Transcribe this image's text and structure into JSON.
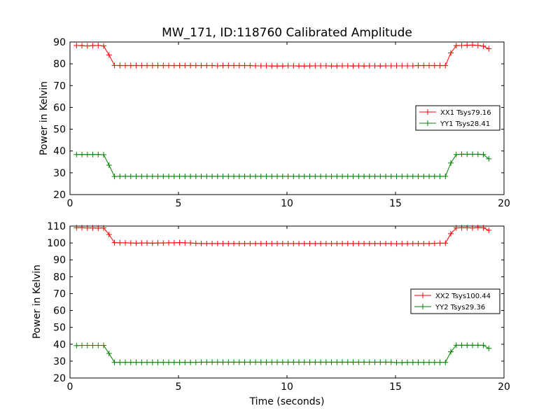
{
  "figure": {
    "title": "MW_171, ID:118760 Calibrated Amplitude",
    "xlabel": "Time (seconds)"
  },
  "colors": {
    "xx": "#ff0000",
    "yy": "#008000"
  },
  "chart_data": [
    {
      "type": "line",
      "ylabel": "Power in Kelvin",
      "xlim": [
        0,
        20
      ],
      "ylim": [
        20,
        90
      ],
      "xticks": [
        0,
        5,
        10,
        15,
        20
      ],
      "yticks": [
        20,
        30,
        40,
        50,
        60,
        70,
        80,
        90
      ],
      "legend_position": "right-middle",
      "series": [
        {
          "name": "XX1 Tsys79.16",
          "color": "#ff0000",
          "x": [
            0.3,
            0.55,
            0.8,
            1.05,
            1.3,
            1.55,
            1.8,
            2.05,
            2.3,
            2.55,
            2.8,
            3.05,
            3.3,
            3.55,
            3.8,
            4.05,
            4.3,
            4.55,
            4.8,
            5.05,
            5.3,
            5.55,
            5.8,
            6.05,
            6.3,
            6.55,
            6.8,
            7.05,
            7.3,
            7.55,
            7.8,
            8.05,
            8.3,
            8.55,
            8.8,
            9.05,
            9.3,
            9.55,
            9.8,
            10.05,
            10.3,
            10.55,
            10.8,
            11.05,
            11.3,
            11.55,
            11.8,
            12.05,
            12.3,
            12.55,
            12.8,
            13.05,
            13.3,
            13.55,
            13.8,
            14.05,
            14.3,
            14.55,
            14.8,
            15.05,
            15.3,
            15.55,
            15.8,
            16.05,
            16.3,
            16.55,
            16.8,
            17.05,
            17.3,
            17.55,
            17.8,
            18.05,
            18.3,
            18.55,
            18.8,
            19.05,
            19.3
          ],
          "y": [
            88.4,
            88.3,
            88.2,
            88.3,
            88.4,
            88.2,
            84.0,
            79.3,
            79.2,
            79.2,
            79.2,
            79.2,
            79.2,
            79.2,
            79.2,
            79.2,
            79.2,
            79.2,
            79.2,
            79.2,
            79.2,
            79.2,
            79.2,
            79.2,
            79.2,
            79.2,
            79.1,
            79.2,
            79.2,
            79.2,
            79.2,
            79.2,
            79.2,
            79.1,
            79.1,
            79.1,
            79.0,
            79.0,
            79.0,
            79.1,
            79.1,
            79.0,
            79.0,
            79.0,
            79.1,
            79.1,
            79.1,
            79.0,
            79.0,
            79.1,
            79.1,
            79.0,
            79.1,
            79.0,
            79.1,
            79.1,
            79.0,
            79.1,
            79.1,
            79.1,
            79.1,
            79.1,
            79.1,
            79.2,
            79.2,
            79.2,
            79.2,
            79.2,
            79.2,
            85.0,
            88.3,
            88.4,
            88.5,
            88.6,
            88.4,
            88.1,
            86.9
          ]
        },
        {
          "name": "YY1 Tsys28.41",
          "color": "#008000",
          "x": [
            0.3,
            0.55,
            0.8,
            1.05,
            1.3,
            1.55,
            1.8,
            2.05,
            2.3,
            2.55,
            2.8,
            3.05,
            3.3,
            3.55,
            3.8,
            4.05,
            4.3,
            4.55,
            4.8,
            5.05,
            5.3,
            5.55,
            5.8,
            6.05,
            6.3,
            6.55,
            6.8,
            7.05,
            7.3,
            7.55,
            7.8,
            8.05,
            8.3,
            8.55,
            8.8,
            9.05,
            9.3,
            9.55,
            9.8,
            10.05,
            10.3,
            10.55,
            10.8,
            11.05,
            11.3,
            11.55,
            11.8,
            12.05,
            12.3,
            12.55,
            12.8,
            13.05,
            13.3,
            13.55,
            13.8,
            14.05,
            14.3,
            14.55,
            14.8,
            15.05,
            15.3,
            15.55,
            15.8,
            16.05,
            16.3,
            16.55,
            16.8,
            17.05,
            17.3,
            17.55,
            17.8,
            18.05,
            18.3,
            18.55,
            18.8,
            19.05,
            19.3
          ],
          "y": [
            38.4,
            38.4,
            38.4,
            38.4,
            38.4,
            38.3,
            33.5,
            28.3,
            28.4,
            28.4,
            28.4,
            28.4,
            28.4,
            28.4,
            28.4,
            28.4,
            28.4,
            28.4,
            28.4,
            28.4,
            28.4,
            28.4,
            28.4,
            28.4,
            28.4,
            28.4,
            28.4,
            28.4,
            28.4,
            28.4,
            28.4,
            28.4,
            28.4,
            28.4,
            28.4,
            28.4,
            28.4,
            28.4,
            28.4,
            28.4,
            28.4,
            28.4,
            28.4,
            28.4,
            28.4,
            28.4,
            28.4,
            28.4,
            28.4,
            28.4,
            28.4,
            28.4,
            28.4,
            28.4,
            28.4,
            28.4,
            28.4,
            28.4,
            28.4,
            28.4,
            28.4,
            28.4,
            28.4,
            28.4,
            28.4,
            28.4,
            28.4,
            28.4,
            28.4,
            34.5,
            38.4,
            38.5,
            38.5,
            38.5,
            38.5,
            38.4,
            36.4
          ]
        }
      ]
    },
    {
      "type": "line",
      "ylabel": "Power in Kelvin",
      "xlabel": "Time (seconds)",
      "xlim": [
        0,
        20
      ],
      "ylim": [
        20,
        110
      ],
      "xticks": [
        0,
        5,
        10,
        15,
        20
      ],
      "yticks": [
        20,
        30,
        40,
        50,
        60,
        70,
        80,
        90,
        100,
        110
      ],
      "legend_position": "right-middle",
      "series": [
        {
          "name": "XX2 Tsys100.44",
          "color": "#ff0000",
          "x": [
            0.3,
            0.55,
            0.8,
            1.05,
            1.3,
            1.55,
            1.8,
            2.05,
            2.3,
            2.55,
            2.8,
            3.05,
            3.3,
            3.55,
            3.8,
            4.05,
            4.3,
            4.55,
            4.8,
            5.05,
            5.3,
            5.55,
            5.8,
            6.05,
            6.3,
            6.55,
            6.8,
            7.05,
            7.3,
            7.55,
            7.8,
            8.05,
            8.3,
            8.55,
            8.8,
            9.05,
            9.3,
            9.55,
            9.8,
            10.05,
            10.3,
            10.55,
            10.8,
            11.05,
            11.3,
            11.55,
            11.8,
            12.05,
            12.3,
            12.55,
            12.8,
            13.05,
            13.3,
            13.55,
            13.8,
            14.05,
            14.3,
            14.55,
            14.8,
            15.05,
            15.3,
            15.55,
            15.8,
            16.05,
            16.3,
            16.55,
            16.8,
            17.05,
            17.3,
            17.55,
            17.8,
            18.05,
            18.3,
            18.55,
            18.8,
            19.05,
            19.3
          ],
          "y": [
            109.0,
            109.0,
            108.9,
            108.9,
            108.8,
            108.9,
            105.0,
            100.2,
            100.1,
            100.1,
            100.0,
            99.9,
            100.0,
            100.0,
            99.9,
            100.0,
            100.0,
            100.1,
            100.1,
            100.2,
            100.1,
            100.0,
            99.8,
            99.7,
            99.7,
            99.7,
            99.7,
            99.7,
            99.7,
            99.7,
            99.7,
            99.7,
            99.7,
            99.7,
            99.7,
            99.7,
            99.7,
            99.7,
            99.7,
            99.7,
            99.7,
            99.7,
            99.7,
            99.7,
            99.7,
            99.7,
            99.7,
            99.7,
            99.7,
            99.7,
            99.7,
            99.7,
            99.7,
            99.7,
            99.7,
            99.7,
            99.7,
            99.7,
            99.7,
            99.6,
            99.6,
            99.6,
            99.7,
            99.7,
            99.7,
            99.7,
            99.8,
            99.9,
            99.9,
            105.5,
            108.9,
            109.0,
            109.0,
            108.9,
            109.1,
            109.0,
            107.5
          ]
        },
        {
          "name": "YY2 Tsys29.36",
          "color": "#008000",
          "x": [
            0.3,
            0.55,
            0.8,
            1.05,
            1.3,
            1.55,
            1.8,
            2.05,
            2.3,
            2.55,
            2.8,
            3.05,
            3.3,
            3.55,
            3.8,
            4.05,
            4.3,
            4.55,
            4.8,
            5.05,
            5.3,
            5.55,
            5.8,
            6.05,
            6.3,
            6.55,
            6.8,
            7.05,
            7.3,
            7.55,
            7.8,
            8.05,
            8.3,
            8.55,
            8.8,
            9.05,
            9.3,
            9.55,
            9.8,
            10.05,
            10.3,
            10.55,
            10.8,
            11.05,
            11.3,
            11.55,
            11.8,
            12.05,
            12.3,
            12.55,
            12.8,
            13.05,
            13.3,
            13.55,
            13.8,
            14.05,
            14.3,
            14.55,
            14.8,
            15.05,
            15.3,
            15.55,
            15.8,
            16.05,
            16.3,
            16.55,
            16.8,
            17.05,
            17.3,
            17.55,
            17.8,
            18.05,
            18.3,
            18.55,
            18.8,
            19.05,
            19.3
          ],
          "y": [
            39.2,
            39.3,
            39.3,
            39.3,
            39.3,
            39.3,
            34.5,
            29.3,
            29.3,
            29.3,
            29.3,
            29.3,
            29.3,
            29.3,
            29.3,
            29.3,
            29.3,
            29.3,
            29.3,
            29.3,
            29.3,
            29.3,
            29.3,
            29.4,
            29.4,
            29.4,
            29.4,
            29.4,
            29.4,
            29.4,
            29.4,
            29.4,
            29.4,
            29.4,
            29.4,
            29.4,
            29.4,
            29.4,
            29.4,
            29.4,
            29.4,
            29.4,
            29.4,
            29.4,
            29.4,
            29.4,
            29.4,
            29.4,
            29.4,
            29.4,
            29.4,
            29.4,
            29.4,
            29.4,
            29.4,
            29.4,
            29.4,
            29.4,
            29.4,
            29.2,
            29.2,
            29.3,
            29.3,
            29.3,
            29.3,
            29.3,
            29.3,
            29.3,
            29.3,
            35.5,
            39.4,
            39.4,
            39.4,
            39.4,
            39.4,
            39.4,
            37.5
          ]
        }
      ]
    }
  ]
}
